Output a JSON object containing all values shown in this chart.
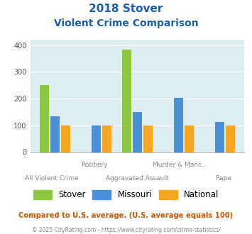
{
  "title_line1": "2018 Stover",
  "title_line2": "Violent Crime Comparison",
  "row1_labels": [
    "",
    "Robbery",
    "",
    "Murder & Mans...",
    ""
  ],
  "row2_labels": [
    "All Violent Crime",
    "",
    "Aggravated Assault",
    "",
    "Rape"
  ],
  "stover": [
    250,
    0,
    383,
    0,
    0
  ],
  "missouri": [
    135,
    100,
    150,
    202,
    113
  ],
  "national": [
    100,
    100,
    100,
    100,
    100
  ],
  "stover_color": "#8dc63f",
  "missouri_color": "#4a90d9",
  "national_color": "#f5a623",
  "bg_color": "#ddeef3",
  "ylim": [
    0,
    420
  ],
  "yticks": [
    0,
    100,
    200,
    300,
    400
  ],
  "title_color": "#1a5fa8",
  "footer1": "Compared to U.S. average. (U.S. average equals 100)",
  "footer2": "© 2025 CityRating.com - https://www.cityrating.com/crime-statistics/",
  "footer1_color": "#cc5500",
  "footer2_color": "#888888",
  "label_color": "#888888"
}
